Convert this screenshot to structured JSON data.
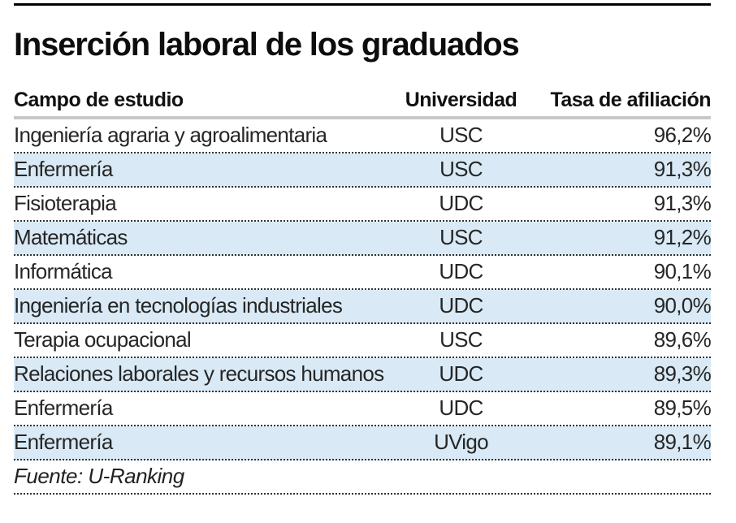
{
  "title": "Inserción laboral de los graduados",
  "table": {
    "headers": {
      "campo": "Campo de estudio",
      "universidad": "Universidad",
      "tasa": "Tasa de afiliación"
    },
    "rows": [
      {
        "campo": "Ingeniería agraria y agroalimentaria",
        "universidad": "USC",
        "tasa": "96,2%",
        "shaded": false
      },
      {
        "campo": "Enfermería",
        "universidad": "USC",
        "tasa": "91,3%",
        "shaded": true
      },
      {
        "campo": "Fisioterapia",
        "universidad": "UDC",
        "tasa": "91,3%",
        "shaded": false
      },
      {
        "campo": "Matemáticas",
        "universidad": "USC",
        "tasa": "91,2%",
        "shaded": true
      },
      {
        "campo": "Informática",
        "universidad": "UDC",
        "tasa": "90,1%",
        "shaded": false
      },
      {
        "campo": "Ingeniería en tecnologías industriales",
        "universidad": "UDC",
        "tasa": "90,0%",
        "shaded": true
      },
      {
        "campo": "Terapia ocupacional",
        "universidad": "USC",
        "tasa": "89,6%",
        "shaded": false
      },
      {
        "campo": "Relaciones laborales y recursos humanos",
        "universidad": "UDC",
        "tasa": "89,3%",
        "shaded": true
      },
      {
        "campo": "Enfermería",
        "universidad": "UDC",
        "tasa": "89,5%",
        "shaded": false
      },
      {
        "campo": "Enfermería",
        "universidad": "UVigo",
        "tasa": "89,1%",
        "shaded": true
      }
    ],
    "source": "Fuente: U-Ranking"
  },
  "colors": {
    "row_highlight": "#d9eaf6",
    "header_rule": "#c8c8c8",
    "top_rule": "#000000",
    "text": "#262626"
  },
  "chart_data": {
    "type": "table",
    "title": "Inserción laboral de los graduados",
    "columns": [
      "Campo de estudio",
      "Universidad",
      "Tasa de afiliación"
    ],
    "rows": [
      [
        "Ingeniería agraria y agroalimentaria",
        "USC",
        "96,2%"
      ],
      [
        "Enfermería",
        "USC",
        "91,3%"
      ],
      [
        "Fisioterapia",
        "UDC",
        "91,3%"
      ],
      [
        "Matemáticas",
        "USC",
        "91,2%"
      ],
      [
        "Informática",
        "UDC",
        "90,1%"
      ],
      [
        "Ingeniería en tecnologías industriales",
        "UDC",
        "90,0%"
      ],
      [
        "Terapia ocupacional",
        "USC",
        "89,6%"
      ],
      [
        "Relaciones laborales y recursos humanos",
        "UDC",
        "89,3%"
      ],
      [
        "Enfermería",
        "UDC",
        "89,5%"
      ],
      [
        "Enfermería",
        "UVigo",
        "89,1%"
      ]
    ],
    "values_pct": [
      96.2,
      91.3,
      91.3,
      91.2,
      90.1,
      90.0,
      89.6,
      89.3,
      89.5,
      89.1
    ],
    "source": "Fuente: U-Ranking",
    "layout_hints": {
      "alternating_row_highlight": true,
      "value_alignment": "right",
      "university_alignment": "center"
    }
  }
}
